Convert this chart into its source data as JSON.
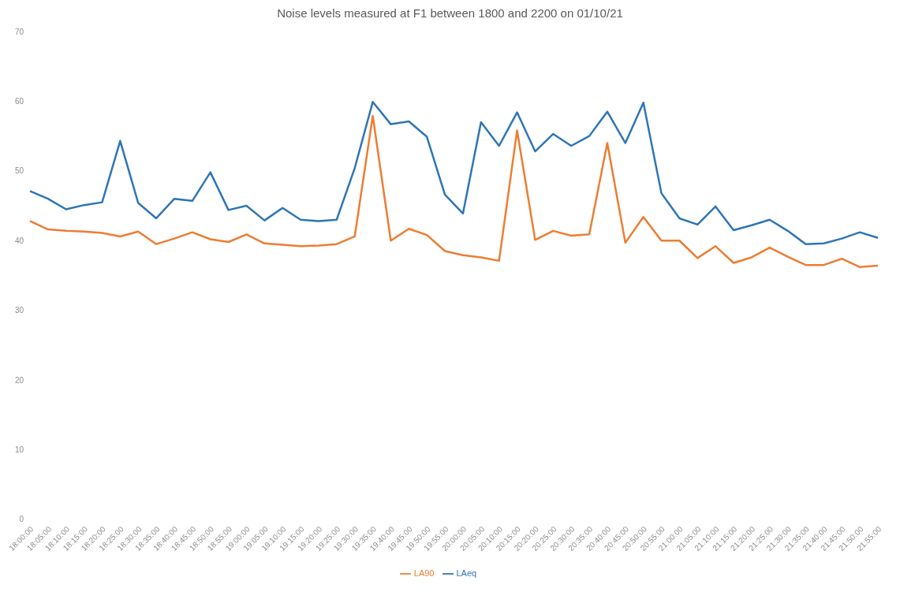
{
  "chart_data": {
    "type": "line",
    "title": "Noise levels measured at F1 between 1800 and 2200 on 01/10/21",
    "categories": [
      "18:00:00",
      "18:05:00",
      "18:10:00",
      "18:15:00",
      "18:20:00",
      "18:25:00",
      "18:30:00",
      "18:35:00",
      "18:40:00",
      "18:45:00",
      "18:50:00",
      "18:55:00",
      "19:00:00",
      "19:05:00",
      "19:10:00",
      "19:15:00",
      "19:20:00",
      "19:25:00",
      "19:30:00",
      "19:35:00",
      "19:40:00",
      "19:45:00",
      "19:50:00",
      "19:55:00",
      "20:00:00",
      "20:05:00",
      "20:10:00",
      "20:15:00",
      "20:20:00",
      "20:25:00",
      "20:30:00",
      "20:35:00",
      "20:40:00",
      "20:45:00",
      "20:50:00",
      "20:55:00",
      "21:00:00",
      "21:05:00",
      "21:10:00",
      "21:15:00",
      "21:20:00",
      "21:25:00",
      "21:30:00",
      "21:35:00",
      "21:40:00",
      "21:45:00",
      "21:50:00",
      "21:55:00"
    ],
    "series": [
      {
        "name": "LAeq",
        "color": "#2e75b6",
        "values": [
          47.1,
          46.0,
          44.5,
          45.1,
          45.5,
          54.3,
          45.4,
          43.2,
          46.0,
          45.7,
          49.8,
          44.4,
          45.0,
          42.9,
          44.7,
          43.0,
          42.8,
          43.0,
          50.4,
          59.9,
          56.7,
          57.1,
          54.9,
          46.6,
          43.9,
          57.0,
          53.6,
          58.4,
          52.8,
          55.3,
          53.6,
          55.0,
          58.5,
          54.0,
          59.8,
          46.8,
          43.2,
          42.3,
          44.9,
          41.5,
          42.2,
          43.0,
          41.4,
          39.5,
          39.6,
          40.3,
          41.2,
          40.4
        ]
      },
      {
        "name": "LA90",
        "color": "#ed7d31",
        "values": [
          42.8,
          41.6,
          41.4,
          41.3,
          41.1,
          40.6,
          41.3,
          39.5,
          40.3,
          41.2,
          40.2,
          39.8,
          40.9,
          39.6,
          39.4,
          39.2,
          39.3,
          39.5,
          40.6,
          57.9,
          40.0,
          41.7,
          40.8,
          38.5,
          37.9,
          37.6,
          37.1,
          55.8,
          40.1,
          41.4,
          40.7,
          40.9,
          54.0,
          39.7,
          43.4,
          40.0,
          40.0,
          37.5,
          39.2,
          36.8,
          37.6,
          39.0,
          37.7,
          36.5,
          36.5,
          37.4,
          36.2,
          36.4
        ]
      }
    ],
    "ylim": [
      0,
      70
    ],
    "yticks": [
      0,
      10,
      20,
      30,
      40,
      50,
      60,
      70
    ],
    "grid": false,
    "legend": "bottom",
    "marker": "none",
    "line_style": "solid"
  }
}
